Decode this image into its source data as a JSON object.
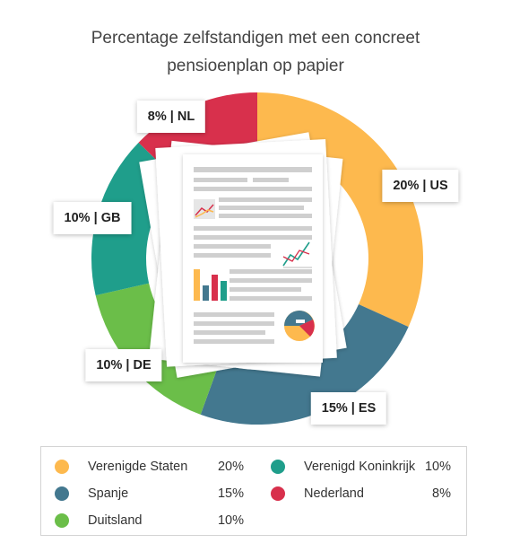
{
  "chart_data": {
    "type": "donut",
    "title_lines": [
      "Percentage zelfstandigen met een concreet",
      "pensioenplan op papier"
    ],
    "slices": [
      {
        "code": "US",
        "name": "Verenigde Staten",
        "value": 20,
        "label": "20% | US",
        "legend_value": "20%",
        "color": "#FDB94E"
      },
      {
        "code": "ES",
        "name": "Spanje",
        "value": 15,
        "label": "15% | ES",
        "legend_value": "15%",
        "color": "#43788F"
      },
      {
        "code": "DE",
        "name": "Duitsland",
        "value": 10,
        "label": "10% | DE",
        "legend_value": "10%",
        "color": "#6BBE49"
      },
      {
        "code": "GB",
        "name": "Verenigd Koninkrijk",
        "value": 10,
        "label": "10% | GB",
        "legend_value": "10%",
        "color": "#1F9E8B"
      },
      {
        "code": "NL",
        "name": "Nederland",
        "value": 8,
        "label": "8% | NL",
        "legend_value": "8%",
        "color": "#D8304C"
      }
    ]
  },
  "center_image": "document-stack-illustration"
}
